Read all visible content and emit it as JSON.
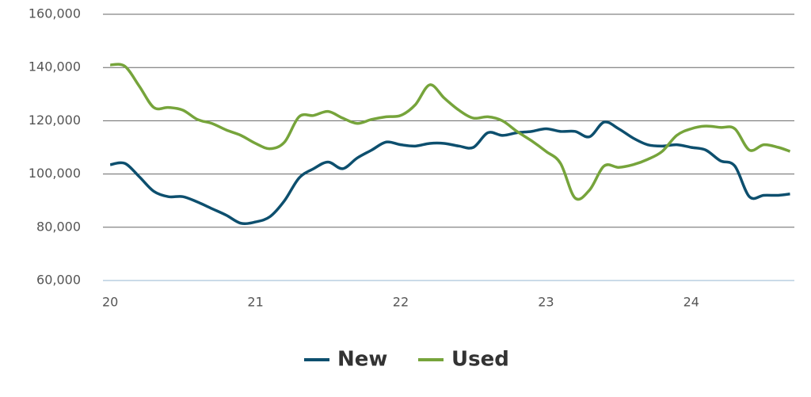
{
  "chart_data": {
    "type": "line",
    "x": [
      20,
      20.1,
      20.2,
      20.3,
      20.4,
      20.5,
      20.6,
      20.7,
      20.8,
      20.9,
      21,
      21.1,
      21.2,
      21.3,
      21.4,
      21.5,
      21.6,
      21.7,
      21.8,
      21.9,
      22,
      22.1,
      22.2,
      22.3,
      22.4,
      22.5,
      22.6,
      22.7,
      22.8,
      22.9,
      23,
      23.1,
      23.2,
      23.3,
      23.4,
      23.5,
      23.6,
      23.7,
      23.8,
      23.9,
      24,
      24.1,
      24.2,
      24.3,
      24.4,
      24.5,
      24.6,
      24.68
    ],
    "series": [
      {
        "name": "New",
        "color": "#0d4f6e",
        "values": [
          103500,
          104000,
          99000,
          93500,
          91500,
          91500,
          89500,
          87000,
          84500,
          81500,
          82000,
          84000,
          90000,
          98500,
          102000,
          104500,
          102000,
          106000,
          109000,
          112000,
          111000,
          110500,
          111500,
          111500,
          110500,
          110000,
          115500,
          114500,
          115500,
          116000,
          117000,
          116000,
          116000,
          114000,
          119500,
          117000,
          113500,
          111000,
          110500,
          111000,
          110000,
          109000,
          105000,
          103000,
          91500,
          92000,
          92000,
          92500
        ]
      },
      {
        "name": "Used",
        "color": "#76a43b",
        "values": [
          141000,
          140500,
          133000,
          125000,
          125000,
          124000,
          120500,
          119000,
          116500,
          114500,
          111500,
          109500,
          112000,
          121500,
          122000,
          123500,
          121000,
          119000,
          120500,
          121500,
          122000,
          126000,
          133500,
          128500,
          124000,
          121000,
          121500,
          120000,
          116000,
          112500,
          108500,
          104000,
          91000,
          94000,
          103000,
          102500,
          103500,
          105500,
          108500,
          114500,
          117000,
          118000,
          117500,
          117000,
          109000,
          111000,
          110000,
          108500
        ]
      }
    ],
    "xlim": [
      19.95,
      24.71
    ],
    "xticks": [
      20,
      21,
      22,
      23,
      24
    ],
    "ylim": [
      60000,
      160000
    ],
    "yticks": [
      {
        "value": 60000,
        "label": "60,000"
      },
      {
        "value": 80000,
        "label": "80,000"
      },
      {
        "value": 100000,
        "label": "100,000"
      },
      {
        "value": 120000,
        "label": "120,000"
      },
      {
        "value": 140000,
        "label": "140,000"
      },
      {
        "value": 160000,
        "label": "160,000"
      }
    ],
    "grid": true,
    "legend": "bottom"
  }
}
